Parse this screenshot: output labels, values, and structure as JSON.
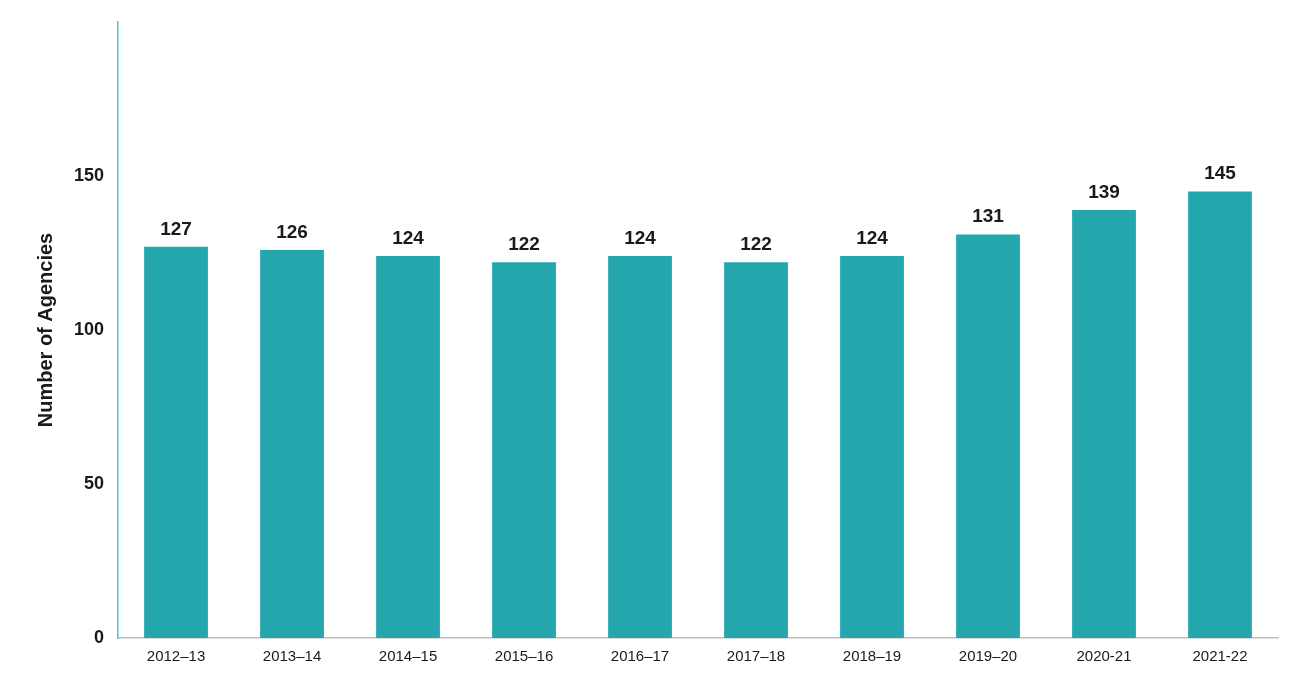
{
  "chart_data": {
    "type": "bar",
    "y_label": "Number of Agencies",
    "categories": [
      "2012–13",
      "2013–14",
      "2014–15",
      "2015–16",
      "2016–17",
      "2017–18",
      "2018–19",
      "2019–20",
      "2020-21",
      "2021-22"
    ],
    "values": [
      127,
      126,
      124,
      122,
      124,
      122,
      124,
      131,
      139,
      145
    ],
    "color": "#24a6ad",
    "ylim": [
      0,
      200
    ],
    "yticks": [
      0,
      50,
      100,
      150
    ],
    "grid": false,
    "data_labels": true
  }
}
